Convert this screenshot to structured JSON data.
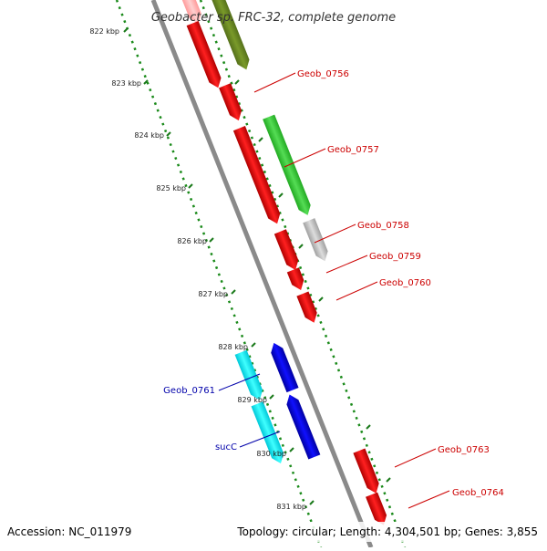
{
  "title": "Geobacter sp. FRC-32, complete genome",
  "ruler_labels": [
    "822 kbp",
    "823 kbp",
    "824 kbp",
    "825 kbp",
    "826 kbp",
    "827 kbp",
    "828 kbp",
    "829 kbp",
    "830 kbp",
    "831 kbp"
  ],
  "gene_labels": {
    "g0756": "Geob_0756",
    "g0757": "Geob_0757",
    "g0758": "Geob_0758",
    "g0759": "Geob_0759",
    "g0760": "Geob_0760",
    "g0761": "Geob_0761",
    "succ": "sucC",
    "g0763": "Geob_0763",
    "g0764": "Geob_0764"
  },
  "footer": {
    "accession": "Accession: NC_011979",
    "stats": "Topology: circular; Length: 4,304,501 bp; Genes: 3,855"
  },
  "colors": {
    "backbone": "#8a8a8a",
    "forward_gene": "#ff0000",
    "olive_gene": "#6b8e23",
    "green_gene": "#33cc33",
    "gray_gene": "#c0c0c0",
    "pink_gene": "#ffb6b6",
    "reverse_gene": "#0000dd",
    "cyan_gene": "#00e5ee",
    "gc_dots": "#1a8a1a",
    "label_red": "#cc0000",
    "label_blue": "#0000aa"
  }
}
